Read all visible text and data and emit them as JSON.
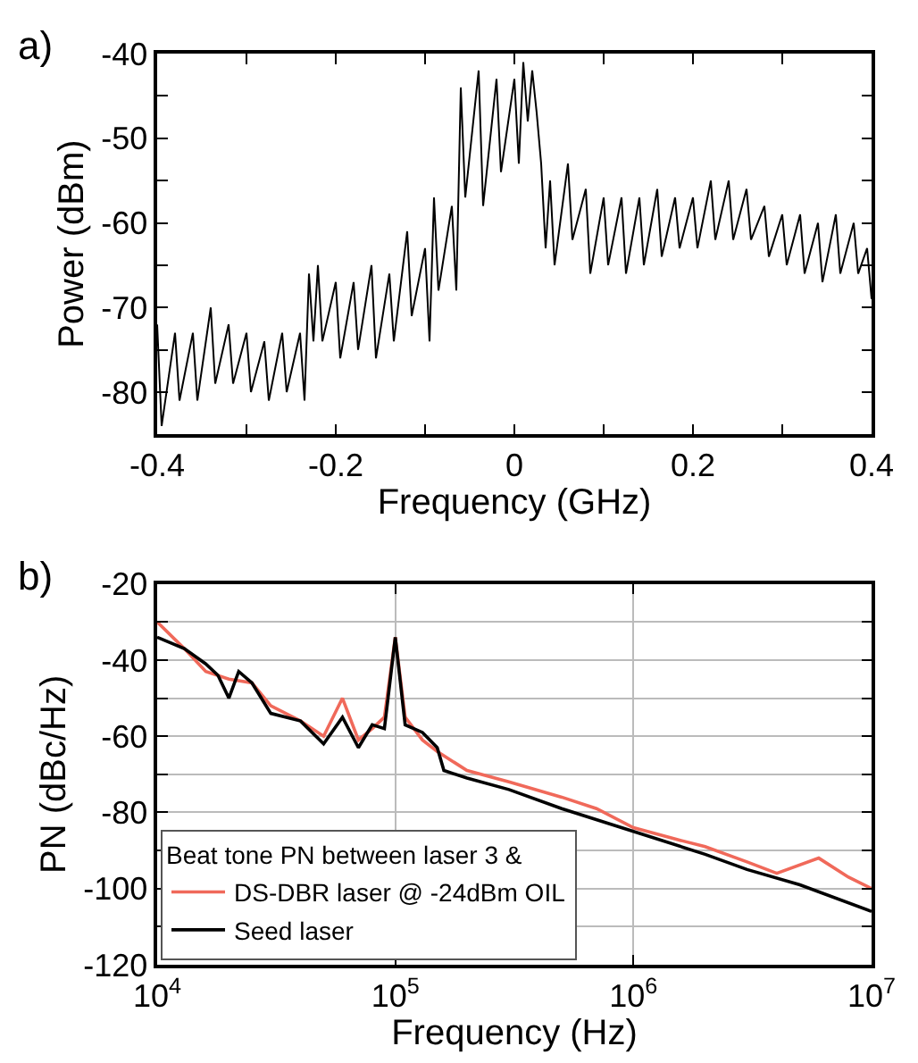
{
  "chart_data": [
    {
      "type": "line",
      "annotations": [
        "a)"
      ],
      "xlabel": "Frequency (GHz)",
      "ylabel": "Power (dBm)",
      "x": [
        -0.4,
        -0.395,
        -0.38,
        -0.375,
        -0.36,
        -0.355,
        -0.34,
        -0.335,
        -0.32,
        -0.315,
        -0.3,
        -0.295,
        -0.28,
        -0.275,
        -0.26,
        -0.255,
        -0.24,
        -0.235,
        -0.23,
        -0.225,
        -0.22,
        -0.215,
        -0.2,
        -0.195,
        -0.18,
        -0.175,
        -0.16,
        -0.155,
        -0.14,
        -0.135,
        -0.12,
        -0.115,
        -0.1,
        -0.095,
        -0.09,
        -0.085,
        -0.07,
        -0.065,
        -0.06,
        -0.055,
        -0.04,
        -0.035,
        -0.02,
        -0.015,
        0.0,
        0.005,
        0.01,
        0.015,
        0.02,
        0.025,
        0.03,
        0.035,
        0.04,
        0.045,
        0.06,
        0.065,
        0.08,
        0.085,
        0.1,
        0.105,
        0.12,
        0.125,
        0.14,
        0.145,
        0.16,
        0.165,
        0.18,
        0.185,
        0.2,
        0.205,
        0.22,
        0.225,
        0.24,
        0.245,
        0.26,
        0.265,
        0.28,
        0.285,
        0.3,
        0.305,
        0.32,
        0.325,
        0.34,
        0.345,
        0.36,
        0.365,
        0.38,
        0.385,
        0.395,
        0.4
      ],
      "series": [
        {
          "color": "#000000",
          "values": [
            -72,
            -84,
            -73,
            -81,
            -73,
            -81,
            -70,
            -79,
            -72,
            -79,
            -73,
            -80,
            -74,
            -81,
            -73,
            -80,
            -73,
            -81,
            -66,
            -74,
            -65,
            -74,
            -67,
            -76,
            -67,
            -75,
            -65,
            -76,
            -66,
            -74,
            -61,
            -71,
            -63,
            -74,
            -57,
            -68,
            -58,
            -68,
            -44,
            -57,
            -42,
            -58,
            -43,
            -54,
            -43,
            -53,
            -41,
            -48,
            -42,
            -47,
            -53,
            -63,
            -55,
            -65,
            -53,
            -62,
            -56,
            -66,
            -57,
            -65,
            -57,
            -66,
            -57,
            -65,
            -56,
            -64,
            -57,
            -63,
            -57,
            -63,
            -55,
            -62,
            -55,
            -62,
            -56,
            -62,
            -58,
            -64,
            -59,
            -65,
            -59,
            -66,
            -60,
            -67,
            -59,
            -66,
            -60,
            -66,
            -63,
            -69
          ]
        }
      ],
      "xlim": [
        -0.4,
        0.4
      ],
      "xticks": [
        -0.4,
        {
          "value": -0.3,
          "label": null
        },
        -0.2,
        {
          "value": -0.1,
          "label": null
        },
        0.0,
        {
          "value": 0.1,
          "label": null
        },
        0.2,
        {
          "value": 0.3,
          "label": null
        },
        0.4
      ],
      "ylim": [
        -85,
        -40
      ],
      "yticks": [
        {
          "value": -85,
          "label": null
        },
        -80,
        {
          "value": -75,
          "label": null
        },
        -70,
        {
          "value": -65,
          "label": null
        },
        -60,
        {
          "value": -55,
          "label": null
        },
        -50,
        {
          "value": -45,
          "label": null
        },
        -40
      ],
      "grid": false,
      "legend": false,
      "line_style": "solid",
      "marker": "none"
    },
    {
      "type": "line",
      "annotations": [
        "b)"
      ],
      "xlabel": "Frequency (Hz)",
      "ylabel": "PN (dBc/Hz)",
      "legend_title": "Beat tone PN between laser 3 &",
      "log": "x",
      "series": [
        {
          "name": "DS-DBR laser @ -24dBm OIL",
          "color": "#f0695a",
          "x": [
            10000,
            13000,
            16000,
            20000,
            25000,
            30000,
            40000,
            50000,
            60000,
            70000,
            80000,
            90000,
            100000,
            110000,
            130000,
            150000,
            200000,
            300000,
            500000,
            700000,
            1000000,
            1500000,
            2000000,
            3000000,
            4000000,
            6000000,
            8000000,
            10000000
          ],
          "values": [
            -30,
            -37,
            -43,
            -45,
            -46,
            -52,
            -56,
            -60,
            -50,
            -61,
            -58,
            -55,
            -34,
            -55,
            -61,
            -64,
            -69,
            -72,
            -76,
            -79,
            -84,
            -87,
            -89,
            -93,
            -96,
            -92,
            -97,
            -100
          ]
        },
        {
          "name": "Seed laser",
          "color": "#000000",
          "x": [
            10000,
            13000,
            16000,
            18000,
            20000,
            22000,
            25000,
            30000,
            40000,
            50000,
            60000,
            70000,
            80000,
            90000,
            100000,
            110000,
            130000,
            150000,
            160000,
            200000,
            300000,
            500000,
            1000000,
            2000000,
            3000000,
            5000000,
            10000000
          ],
          "values": [
            -34,
            -37,
            -41,
            -44,
            -50,
            -43,
            -46,
            -54,
            -56,
            -62,
            -55,
            -63,
            -57,
            -58,
            -34,
            -57,
            -59,
            -63,
            -69,
            -71,
            -74,
            -79,
            -85,
            -91,
            -95,
            -99,
            -106
          ]
        }
      ],
      "xlim": [
        10000,
        10000000
      ],
      "xticks": [
        {
          "value": 10000,
          "label": "10$^{4}$"
        },
        {
          "value": 100000,
          "label": "10$^{5}$"
        },
        {
          "value": 1000000,
          "label": "10$^{6}$"
        },
        {
          "value": 10000000,
          "label": "10$^{7}$"
        }
      ],
      "ylim": [
        -120,
        -20
      ],
      "yticks": [
        -120,
        {
          "value": -110,
          "label": null
        },
        -100,
        {
          "value": -90,
          "label": null
        },
        -80,
        {
          "value": -70,
          "label": null
        },
        -60,
        {
          "value": -50,
          "label": null
        },
        -40,
        {
          "value": -30,
          "label": null
        },
        -20
      ],
      "grid": true,
      "legend": "bottom left",
      "line_style": "solid",
      "marker": "none"
    }
  ]
}
